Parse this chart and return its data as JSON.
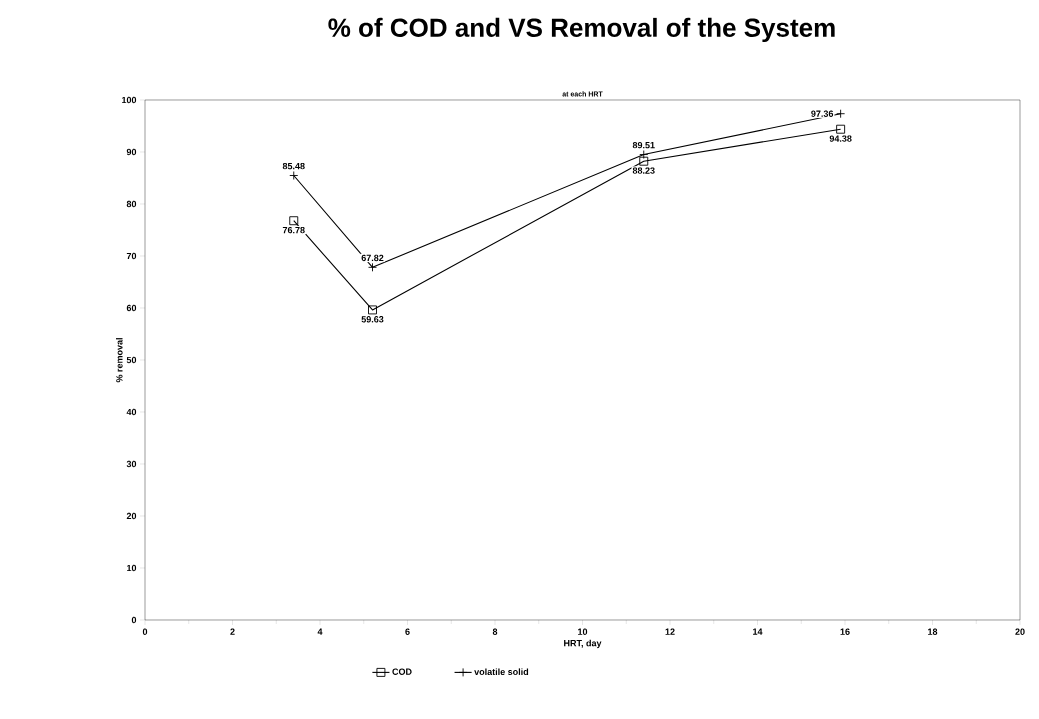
{
  "chart_data": {
    "type": "line",
    "title": "% of COD and VS Removal of the System",
    "subtitle": "at each HRT",
    "xlabel": "HRT, day",
    "ylabel": "% removal",
    "x": [
      3.4,
      5.2,
      11.4,
      15.9
    ],
    "series": [
      {
        "name": "COD",
        "color": "#000000",
        "marker": "square",
        "values": [
          76.78,
          59.63,
          88.23,
          94.38
        ]
      },
      {
        "name": "volatile solid",
        "color": "#000000",
        "marker": "cross",
        "values": [
          85.48,
          67.82,
          89.51,
          97.36
        ]
      }
    ],
    "xlim": [
      0,
      20
    ],
    "xticks": [
      0,
      2,
      4,
      6,
      8,
      10,
      12,
      14,
      16,
      18,
      20
    ],
    "ylim": [
      0,
      100
    ],
    "yticks": [
      0,
      10,
      20,
      30,
      40,
      50,
      60,
      70,
      80,
      90,
      100
    ],
    "data_labels": true,
    "grid": false,
    "legend": "bottom",
    "line_style": "solid"
  }
}
